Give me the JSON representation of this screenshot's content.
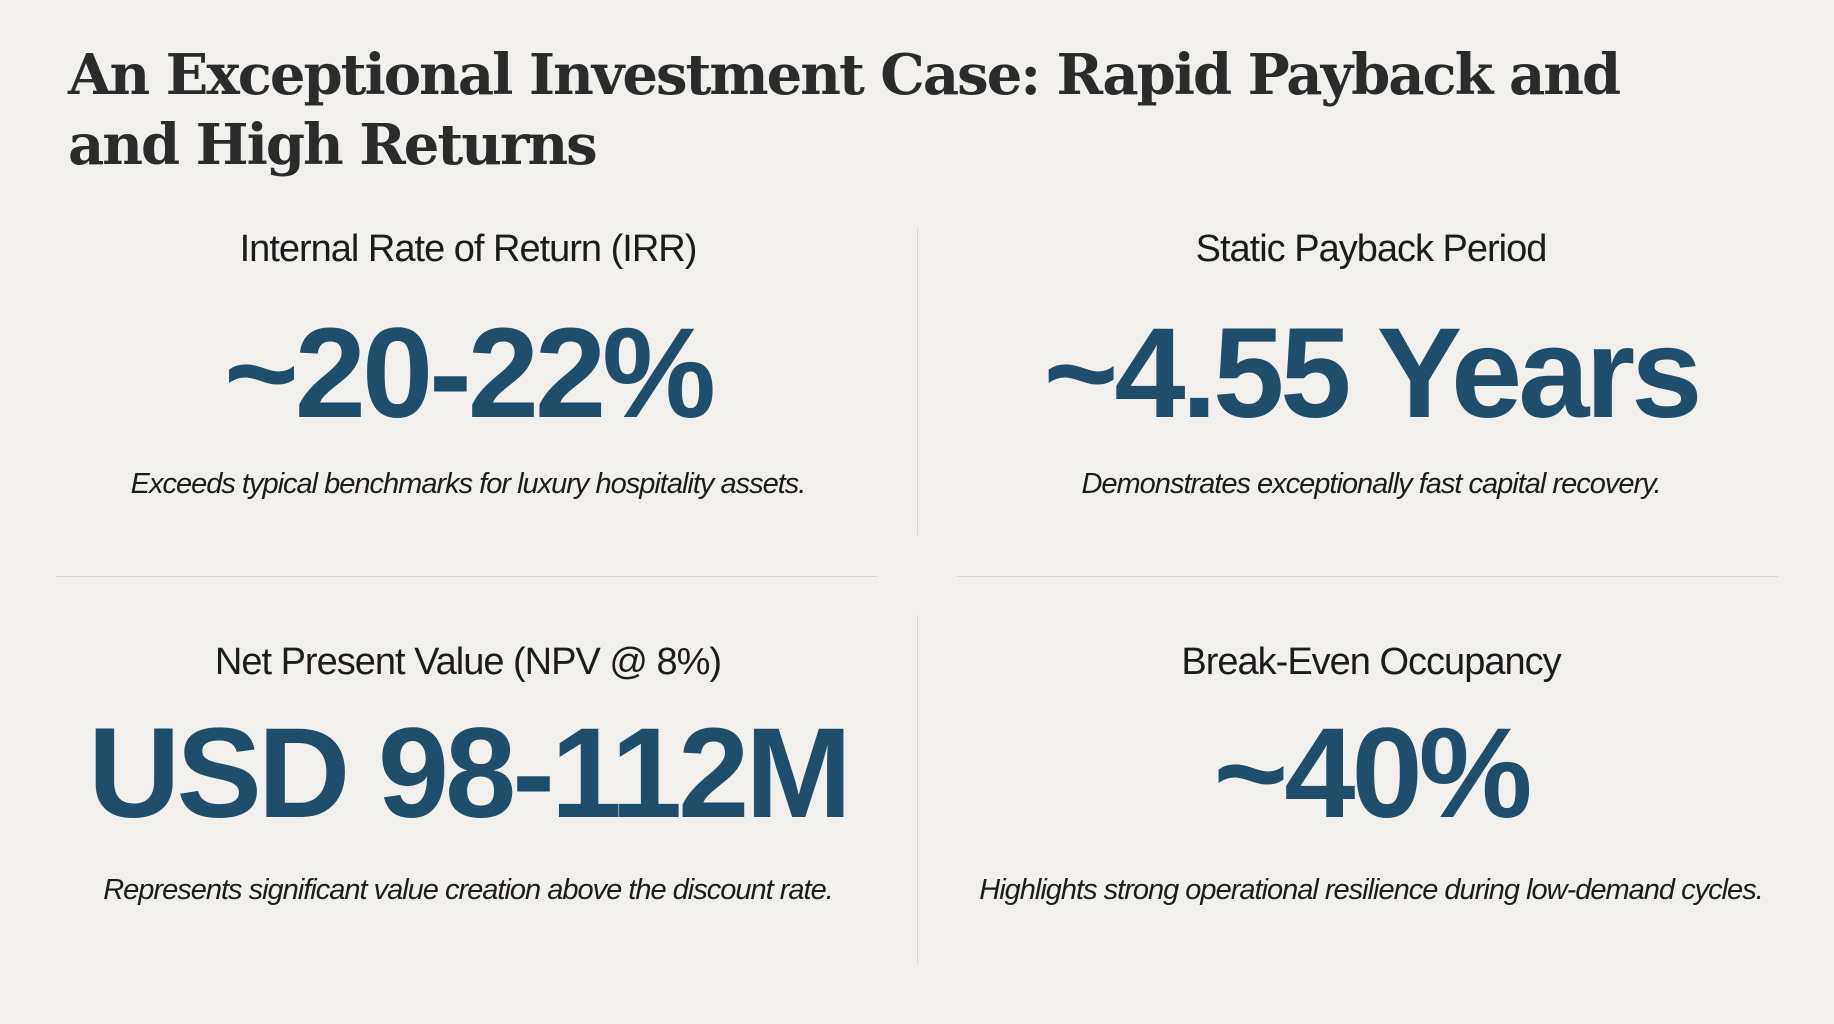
{
  "title": "An Exceptional Investment Case: Rapid Payback and and High Returns",
  "colors": {
    "background": "#f1f0ec",
    "accent": "#1f4d6c",
    "text": "#1c1c1c"
  },
  "metrics": [
    {
      "label": "Internal Rate of Return (IRR)",
      "value": "~20-22%",
      "description": "Exceeds typical benchmarks for luxury hospitality assets."
    },
    {
      "label": "Static Payback Period",
      "value": "~4.55 Years",
      "description": "Demonstrates exceptionally fast capital recovery."
    },
    {
      "label": "Net Present Value (NPV @ 8%)",
      "value": "USD 98-112M",
      "description": "Represents significant value creation above the discount rate."
    },
    {
      "label": "Break-Even Occupancy",
      "value": "~40%",
      "description": "Highlights strong operational resilience during low-demand cycles."
    }
  ]
}
